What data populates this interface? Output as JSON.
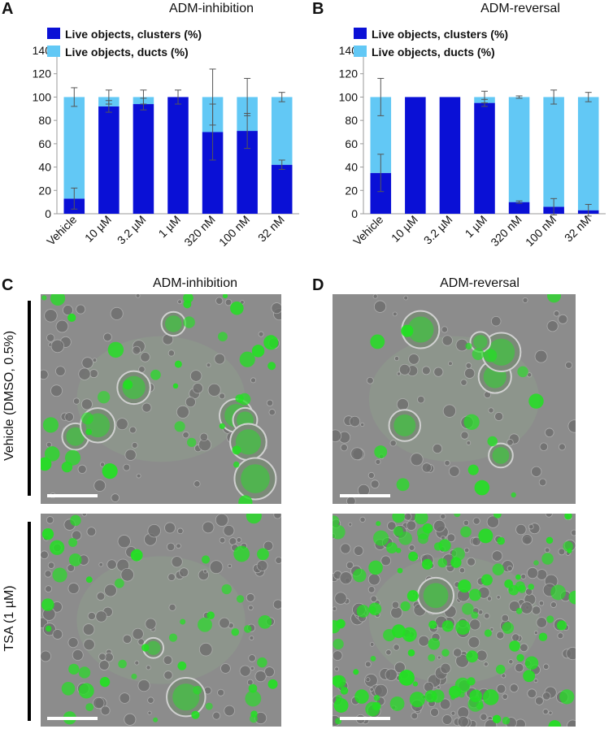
{
  "colors": {
    "clusters": "#0a10d6",
    "ducts": "#62c8f5"
  },
  "panels": {
    "A": {
      "letter": "A",
      "title": "ADM-inhibition"
    },
    "B": {
      "letter": "B",
      "title": "ADM-reversal"
    },
    "C": {
      "letter": "C",
      "title": "ADM-inhibition"
    },
    "D": {
      "letter": "D",
      "title": "ADM-reversal"
    }
  },
  "row_labels": {
    "vehicle": "Vehicle (DMSO, 0.5%)",
    "tsa": "TSA (1 µM)"
  },
  "chart_data": [
    {
      "type": "bar",
      "stacked": true,
      "title": "ADM-inhibition",
      "categories": [
        "Vehicle",
        "10 µM",
        "3.2 µM",
        "1 µM",
        "320 nM",
        "100 nM",
        "32 nM"
      ],
      "series": [
        {
          "name": "Live objects, clusters (%)",
          "color": "#0a10d6",
          "values": [
            13,
            92,
            94,
            100,
            70,
            71,
            42
          ],
          "error": [
            9,
            5,
            5,
            6,
            24,
            15,
            4
          ]
        },
        {
          "name": "Live objects, ducts (%)",
          "color": "#62c8f5",
          "values": [
            87,
            8,
            6,
            0,
            30,
            29,
            58
          ],
          "error": [
            8,
            6,
            6,
            0,
            24,
            16,
            4
          ]
        }
      ],
      "ylim": [
        0,
        140
      ],
      "yticks": [
        0,
        20,
        40,
        60,
        80,
        100,
        120,
        140
      ],
      "legend": "top-left"
    },
    {
      "type": "bar",
      "stacked": true,
      "title": "ADM-reversal",
      "categories": [
        "Vehicle",
        "10 µM",
        "3.2 µM",
        "1 µM",
        "320 nM",
        "100 nM",
        "32 nM"
      ],
      "series": [
        {
          "name": "Live objects, clusters (%)",
          "color": "#0a10d6",
          "values": [
            35,
            100,
            100,
            95,
            10,
            6,
            3
          ],
          "error": [
            16,
            0,
            0,
            3,
            1,
            7,
            5
          ]
        },
        {
          "name": "Live objects, ducts (%)",
          "color": "#62c8f5",
          "values": [
            65,
            0,
            0,
            5,
            90,
            94,
            97
          ],
          "error": [
            16,
            0,
            0,
            5,
            1,
            6,
            4
          ]
        }
      ],
      "ylim": [
        0,
        140
      ],
      "yticks": [
        0,
        20,
        40,
        60,
        80,
        100,
        120,
        140
      ],
      "legend": "top-left"
    }
  ]
}
